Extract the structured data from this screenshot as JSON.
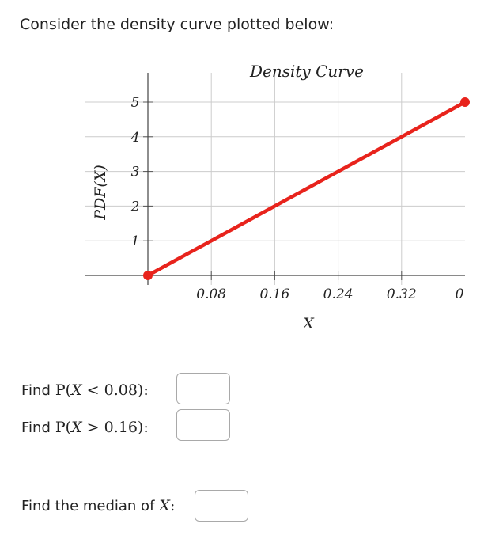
{
  "prompt": "Consider the density curve plotted below:",
  "chart_data": {
    "type": "line",
    "title": "Density Curve",
    "xlabel": "X",
    "ylabel": "PDF(X)",
    "x_ticks": [
      "0.08",
      "0.16",
      "0.24",
      "0.32",
      "0"
    ],
    "y_ticks": [
      "1",
      "2",
      "3",
      "4",
      "5"
    ],
    "xlim": [
      0,
      0.4
    ],
    "ylim": [
      0,
      5
    ],
    "grid": true,
    "series": [
      {
        "x": [
          0,
          0.4
        ],
        "y": [
          0,
          5
        ],
        "color": "#e8231c"
      }
    ]
  },
  "questions": [
    {
      "prefix": "Find",
      "expr_pre": "P(",
      "var": "X",
      "expr_post": " < 0.08):"
    },
    {
      "prefix": "Find",
      "expr_pre": "P(",
      "var": "X",
      "expr_post": " > 0.16):"
    }
  ],
  "median": {
    "prefix": "Find the median of",
    "var": "X",
    "suffix": ":"
  }
}
